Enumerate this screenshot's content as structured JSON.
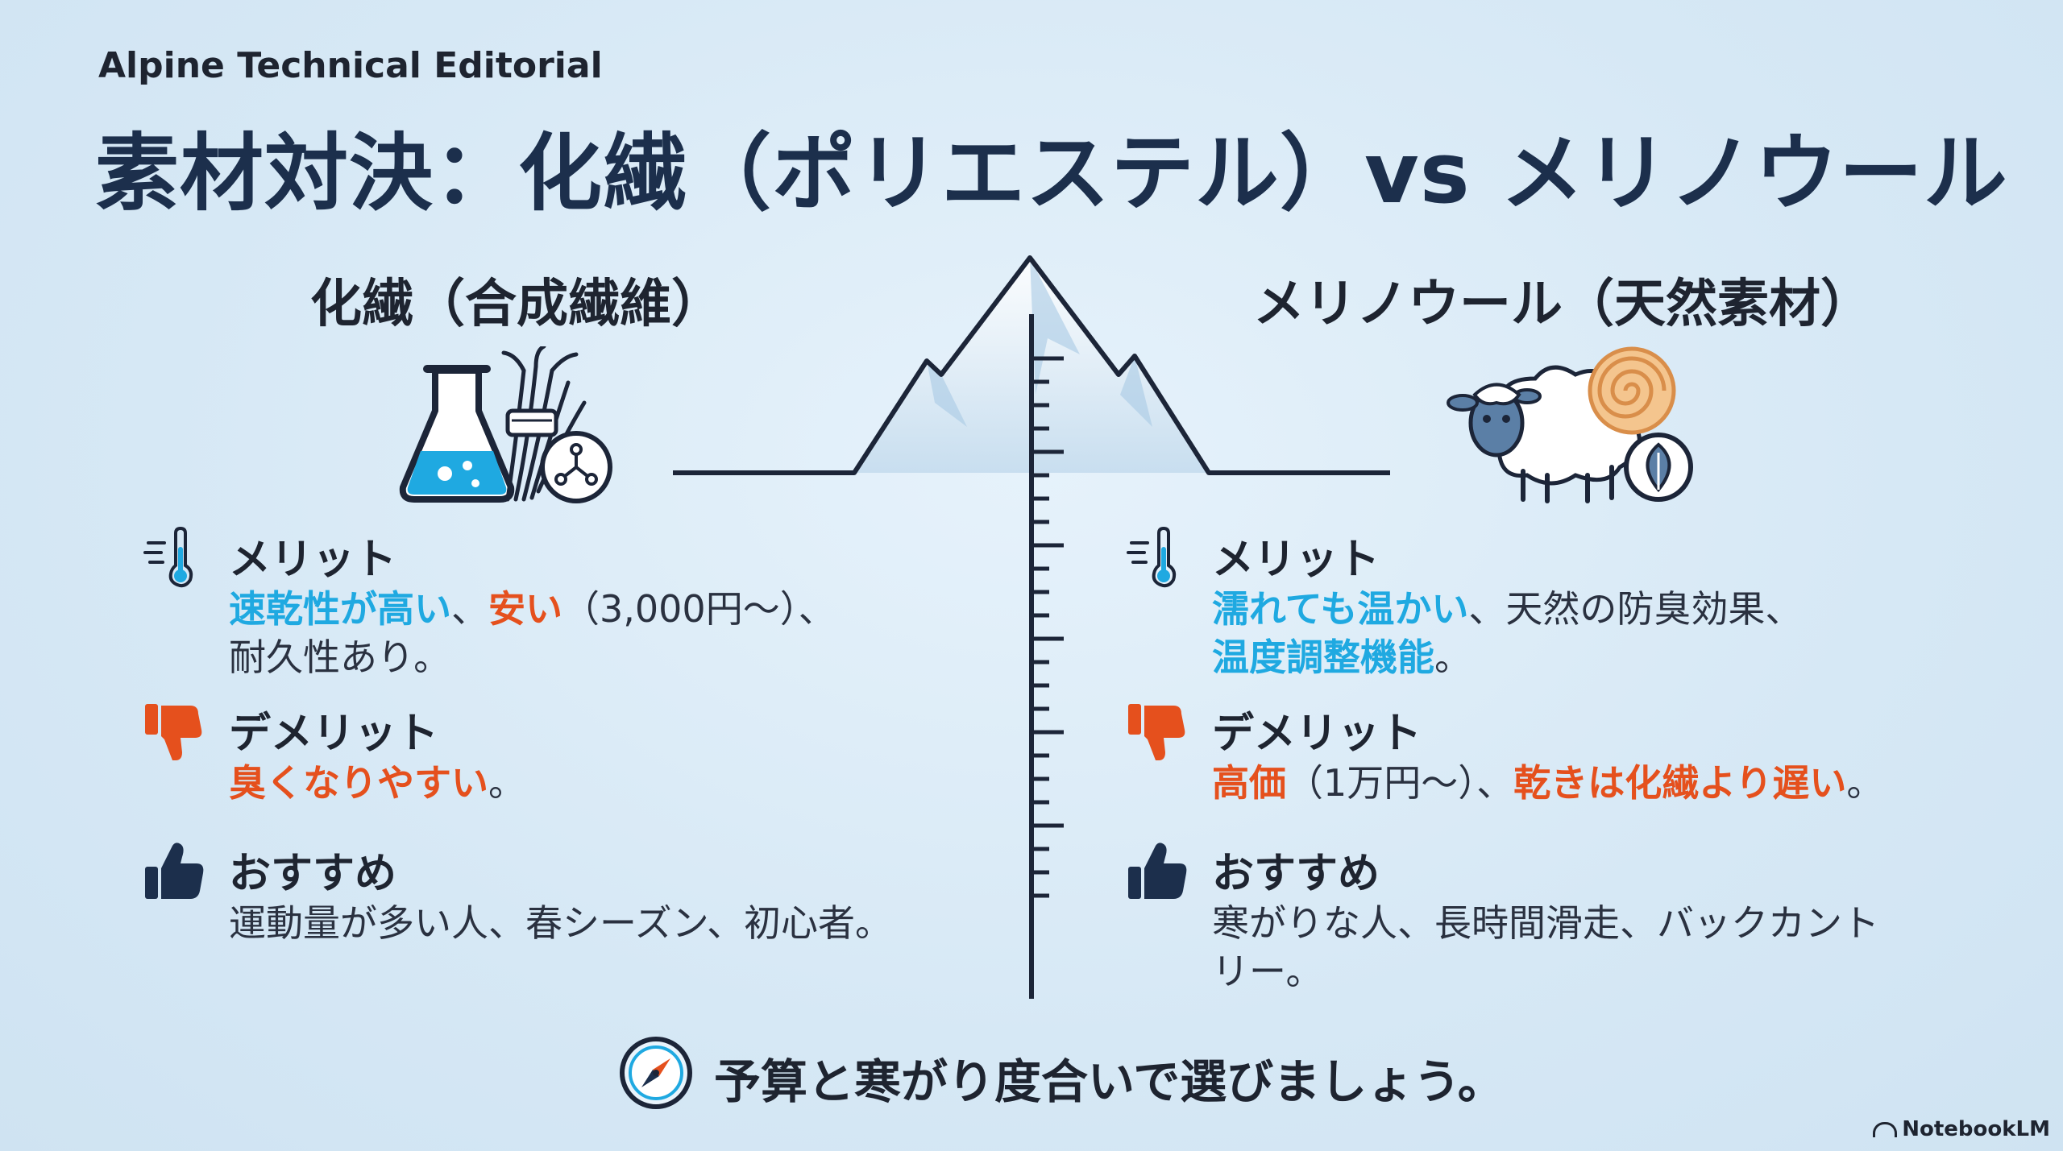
{
  "header": {
    "eyebrow": "Alpine Technical Editorial",
    "title": "素材対決：化繊（ポリエステル）vs メリノウール"
  },
  "left": {
    "title": "化繊（合成繊維）",
    "merit": {
      "label": "メリット",
      "p1": "速乾性が高い",
      "p2": "、",
      "p3": "安い",
      "p4": "（3,000円〜）、",
      "line2": "耐久性あり。"
    },
    "demerit": {
      "label": "デメリット",
      "text": "臭くなりやすい",
      "end": "。"
    },
    "recommend": {
      "label": "おすすめ",
      "text": "運動量が多い人、春シーズン、初心者。"
    }
  },
  "right": {
    "title": "メリノウール（天然素材）",
    "merit": {
      "label": "メリット",
      "p1": "濡れても温かい",
      "p2": "、天然の防臭効果、",
      "line2": "温度調整機能",
      "end": "。"
    },
    "demerit": {
      "label": "デメリット",
      "p1": "高価",
      "p2": "（1万円〜）、",
      "p3": "乾きは化繊より遅い",
      "end": "。"
    },
    "recommend": {
      "label": "おすすめ",
      "line1": "寒がりな人、長時間滑走、バックカント",
      "line2": "リー。"
    }
  },
  "footer": {
    "text": "予算と寒がり度合いで選びましょう。"
  },
  "brand": "NotebookLM",
  "colors": {
    "accent_blue": "#1fa9e1",
    "accent_orange": "#e5501d",
    "navy": "#1c2f4c"
  },
  "icons": {
    "merit": "thermometer-wind-icon",
    "demerit": "thumbs-down-icon",
    "recommend": "thumbs-up-icon",
    "footer": "compass-icon"
  }
}
